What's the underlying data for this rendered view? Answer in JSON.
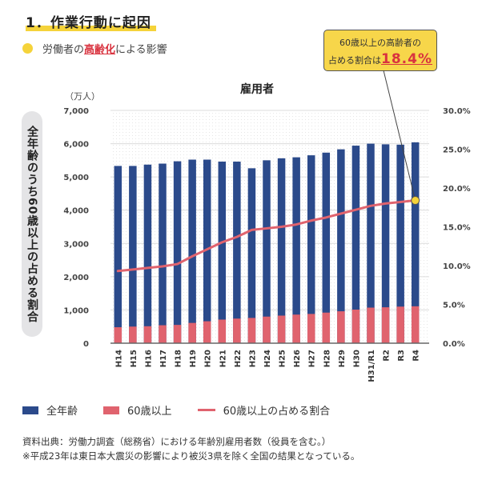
{
  "header": {
    "heading": "1．作業行動に起因",
    "subtitle_pre": "労働者の",
    "subtitle_highlight": "高齢化",
    "subtitle_post": "による影響"
  },
  "callout": {
    "line1": "60歳以上の高齢者の",
    "line2_pre": "占める割合は",
    "value": "18.4%"
  },
  "side_label": "全年齢のうち60歳以上の占める割合",
  "colors": {
    "all_ages": "#2b4a8b",
    "over60": "#e0636e",
    "ratio_line": "#e0636e",
    "accent_yellow": "#f5d33a"
  },
  "chart_data": {
    "type": "bar",
    "title": "雇用者",
    "unit_label": "（万人）",
    "categories": [
      "H14",
      "H15",
      "H16",
      "H17",
      "H18",
      "H19",
      "H20",
      "H21",
      "H22",
      "H23",
      "H24",
      "H25",
      "H26",
      "H27",
      "H28",
      "H29",
      "H30",
      "H31/R1",
      "R2",
      "R3",
      "R4"
    ],
    "series": [
      {
        "name": "全年齢",
        "axis": "left",
        "kind": "bar",
        "values": [
          5330,
          5330,
          5370,
          5400,
          5470,
          5520,
          5520,
          5460,
          5460,
          5260,
          5500,
          5560,
          5590,
          5650,
          5730,
          5830,
          5940,
          6000,
          5980,
          5970,
          6040
        ]
      },
      {
        "name": "60歳以上",
        "axis": "left",
        "kind": "bar",
        "values": [
          480,
          500,
          510,
          540,
          550,
          610,
          660,
          710,
          740,
          760,
          800,
          830,
          860,
          880,
          920,
          960,
          1010,
          1070,
          1080,
          1100,
          1110
        ]
      },
      {
        "name": "60歳以上の占める割合",
        "axis": "right",
        "kind": "line",
        "values": [
          9.3,
          9.5,
          9.7,
          9.9,
          10.2,
          11.2,
          12.1,
          13.0,
          13.7,
          14.6,
          14.8,
          15.0,
          15.3,
          15.8,
          16.2,
          16.7,
          17.2,
          17.7,
          18.0,
          18.2,
          18.4
        ]
      }
    ],
    "left_axis": {
      "ylim": [
        0,
        7000
      ],
      "ticks": [
        0,
        1000,
        2000,
        3000,
        4000,
        5000,
        6000,
        7000
      ],
      "tick_labels": [
        "0",
        "1,000",
        "2,000",
        "3,000",
        "4,000",
        "5,000",
        "6,000",
        "7,000"
      ]
    },
    "right_axis": {
      "ylim": [
        0,
        30
      ],
      "ticks": [
        0,
        5,
        10,
        15,
        20,
        25,
        30
      ],
      "tick_labels": [
        "0.0%",
        "5.0%",
        "10.0%",
        "15.0%",
        "20.0%",
        "25.0%",
        "30.0%"
      ]
    },
    "highlight_point": {
      "category": "R4",
      "value": 18.4
    },
    "grid": true,
    "legend_position": "bottom-left"
  },
  "legend": [
    {
      "label": "全年齢"
    },
    {
      "label": "60歳以上"
    },
    {
      "label": "60歳以上の占める割合"
    }
  ],
  "notes": [
    "資料出典：労働力調査（総務省）における年齢別雇用者数（役員を含む。）",
    "※平成23年は東日本大震災の影響により被災3県を除く全国の結果となっている。"
  ]
}
